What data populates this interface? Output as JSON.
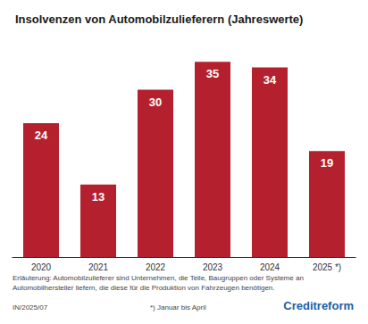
{
  "chart_data": {
    "type": "bar",
    "title": "Insolvenzen von Automobilzulieferern (Jahreswerte)",
    "categories": [
      "2020",
      "2021",
      "2022",
      "2023",
      "2024",
      "2025 *)"
    ],
    "values": [
      24,
      13,
      30,
      35,
      34,
      19
    ],
    "color": "#b5202e",
    "ylim": [
      0,
      40
    ],
    "yticks": [
      0,
      10,
      20,
      30,
      40
    ],
    "grid": false,
    "data_labels": true,
    "tick_labels": "x",
    "annotations": [
      "Erläuterung: Automobilzulieferer sind Unternehmen, die Teile, Baugruppen oder Systeme an Automobilhersteller liefern, die diese für die Produktion von Fahrzeugen benötigen.",
      "IN/2025/07",
      "*) Januar bis April",
      "Creditreform"
    ]
  }
}
